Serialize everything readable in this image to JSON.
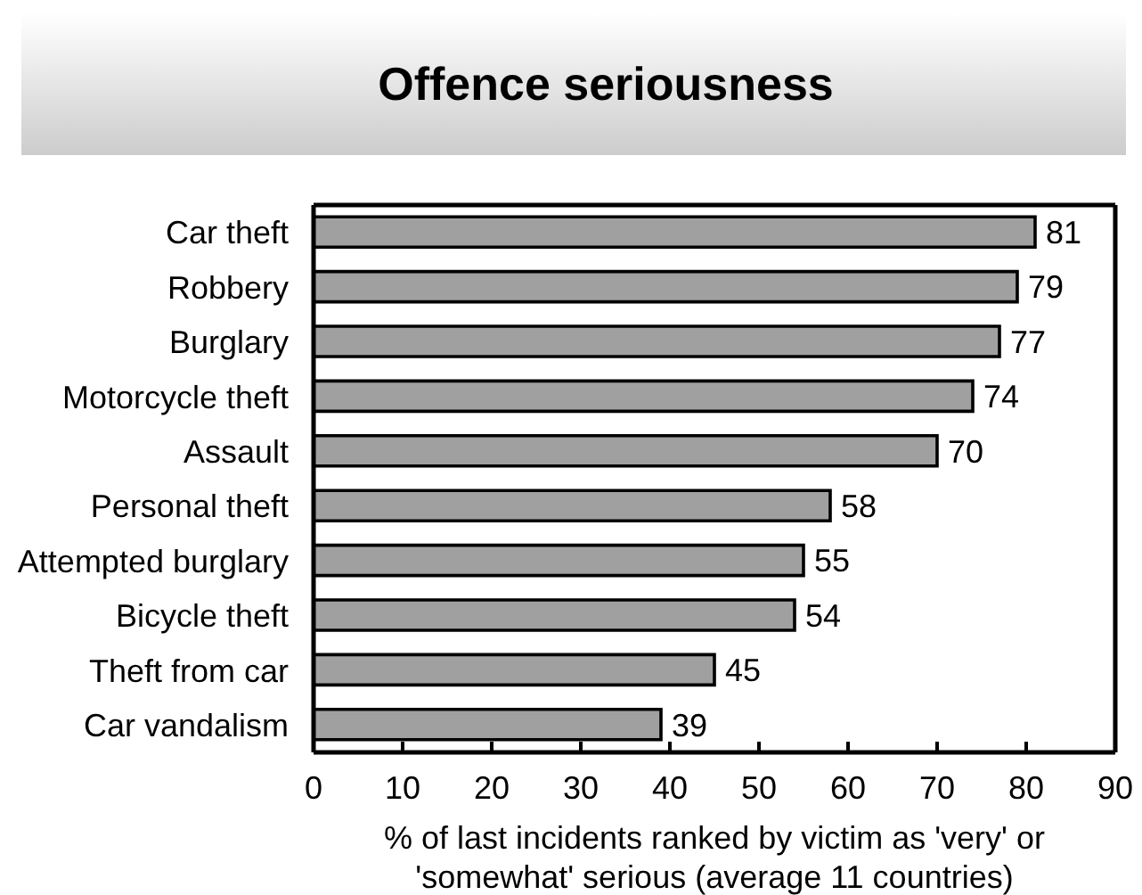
{
  "chart_data": {
    "type": "bar",
    "orientation": "horizontal",
    "title": "Offence seriousness",
    "xlabel": "% of last incidents ranked by victim as 'very' or 'somewhat' serious (average 11 countries)",
    "categories": [
      "Car theft",
      "Robbery",
      "Burglary",
      "Motorcycle theft",
      "Assault",
      "Personal theft",
      "Attempted burglary",
      "Bicycle theft",
      "Theft from car",
      "Car vandalism"
    ],
    "values": [
      81,
      79,
      77,
      74,
      70,
      58,
      55,
      54,
      45,
      39
    ],
    "color": "#a0a0a0",
    "xlim": [
      0,
      90
    ],
    "xticks": [
      0,
      10,
      20,
      30,
      40,
      50,
      60,
      70,
      80,
      90
    ],
    "data_labels": true
  }
}
